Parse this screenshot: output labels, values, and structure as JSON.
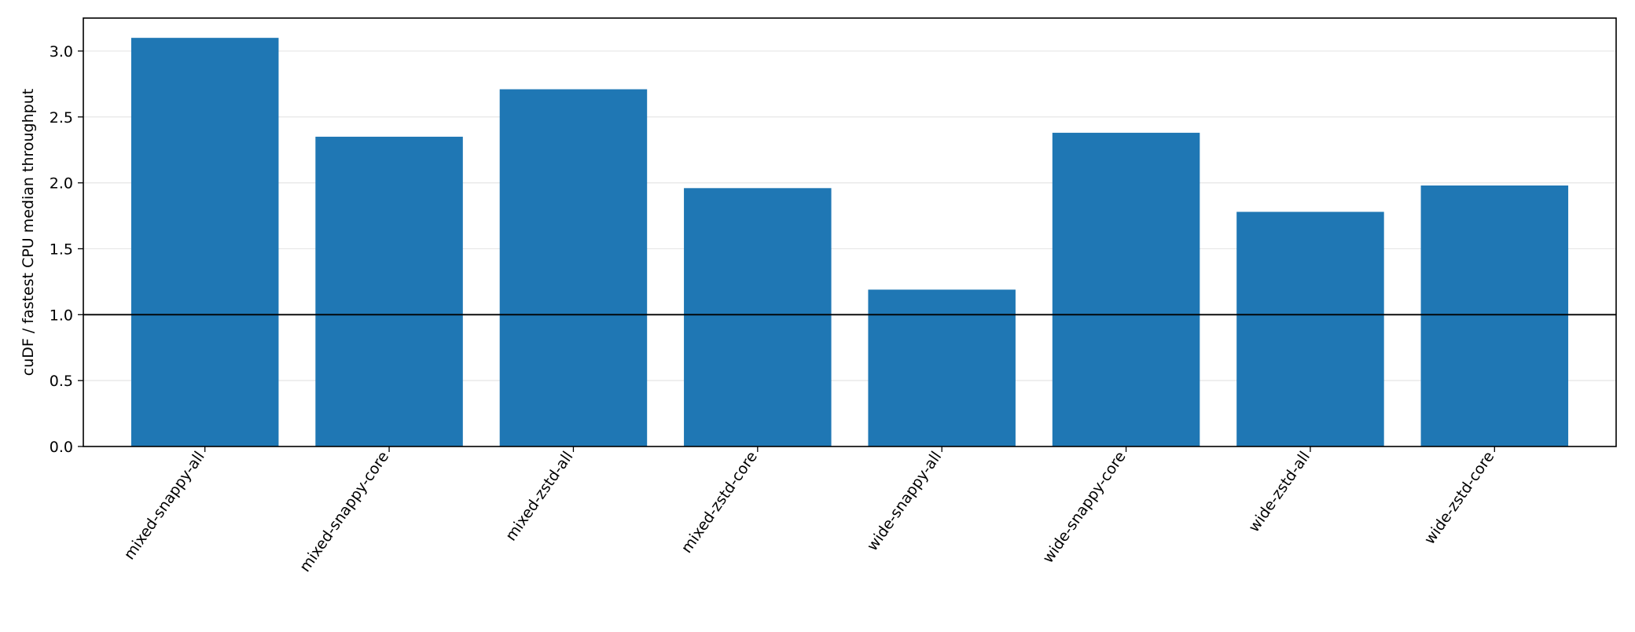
{
  "chart_data": {
    "type": "bar",
    "title": "",
    "xlabel": "",
    "ylabel": "cuDF / fastest CPU median throughput",
    "categories": [
      "mixed-snappy-all",
      "mixed-snappy-core",
      "mixed-zstd-all",
      "mixed-zstd-core",
      "wide-snappy-all",
      "wide-snappy-core",
      "wide-zstd-all",
      "wide-zstd-core"
    ],
    "values": [
      3.1,
      2.35,
      2.71,
      1.96,
      1.19,
      2.38,
      1.78,
      1.98
    ],
    "ylim": [
      0,
      3.25
    ],
    "yticks": [
      "0.0",
      "0.5",
      "1.0",
      "1.5",
      "2.0",
      "2.5",
      "3.0"
    ],
    "reference_line": 1.0,
    "grid": "y",
    "legend": "none",
    "colors": {
      "bar": "#1f77b4",
      "reference_line": "#000000",
      "grid": "#e6e6e6",
      "axis": "#000000"
    }
  }
}
